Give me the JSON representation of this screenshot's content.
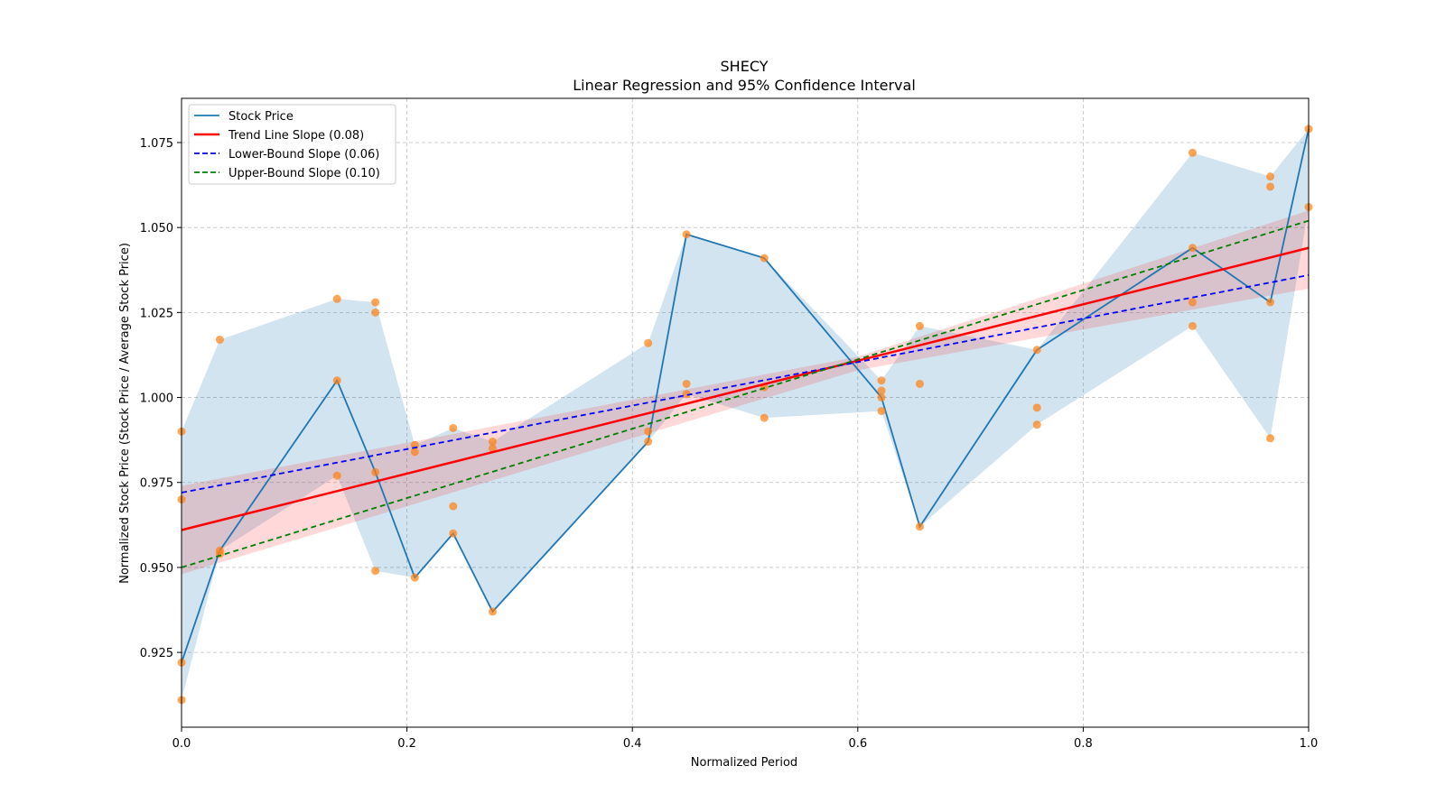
{
  "chart_data": {
    "type": "line",
    "title": "SHECY",
    "subtitle": "Linear Regression and 95% Confidence Interval",
    "xlabel": "Normalized Period",
    "ylabel": "Normalized Stock Price (Stock Price / Average Stock Price)",
    "xlim": [
      0.0,
      1.0
    ],
    "ylim": [
      0.903,
      1.088
    ],
    "x_ticks": [
      0.0,
      0.2,
      0.4,
      0.6,
      0.8,
      1.0
    ],
    "x_tick_labels": [
      "0.0",
      "0.2",
      "0.4",
      "0.6",
      "0.8",
      "1.0"
    ],
    "y_ticks": [
      0.925,
      0.95,
      0.975,
      1.0,
      1.025,
      1.05,
      1.075
    ],
    "y_tick_labels": [
      "0.925",
      "0.950",
      "0.975",
      "1.000",
      "1.025",
      "1.050",
      "1.075"
    ],
    "grid": true,
    "legend_position": "top-left",
    "legend": [
      {
        "label": "Stock Price",
        "color": "#1f77b4",
        "style": "solid"
      },
      {
        "label": "Trend Line Slope (0.08)",
        "color": "#ff0000",
        "style": "solid"
      },
      {
        "label": "Lower-Bound Slope (0.06)",
        "color": "#0000ff",
        "style": "dashed"
      },
      {
        "label": "Upper-Bound Slope (0.10)",
        "color": "#008000",
        "style": "dashed"
      }
    ],
    "stock_price": {
      "name": "Stock Price",
      "color": "#1f77b4",
      "x": [
        0.0,
        0.034,
        0.138,
        0.172,
        0.207,
        0.241,
        0.276,
        0.414,
        0.448,
        0.517,
        0.621,
        0.655,
        0.759,
        0.897,
        0.966,
        1.0
      ],
      "y": [
        0.922,
        0.955,
        1.005,
        0.978,
        0.947,
        0.96,
        0.937,
        0.987,
        1.048,
        1.041,
        1.0,
        0.962,
        1.014,
        1.044,
        1.028,
        1.079
      ]
    },
    "range_band": {
      "color": "#1f77b4",
      "x": [
        0.0,
        0.034,
        0.138,
        0.172,
        0.207,
        0.241,
        0.276,
        0.414,
        0.448,
        0.517,
        0.621,
        0.655,
        0.759,
        0.897,
        0.966,
        1.0
      ],
      "lower": [
        0.911,
        0.955,
        0.977,
        0.949,
        0.947,
        0.96,
        0.937,
        0.987,
        1.001,
        0.994,
        0.996,
        0.962,
        0.992,
        1.021,
        0.988,
        1.056
      ],
      "upper": [
        0.99,
        1.017,
        1.029,
        1.028,
        0.986,
        0.991,
        0.987,
        1.016,
        1.048,
        1.041,
        1.005,
        1.021,
        1.014,
        1.072,
        1.065,
        1.079
      ]
    },
    "scatter_points": {
      "color": "#ff7f0e",
      "x": [
        0.0,
        0.0,
        0.0,
        0.0,
        0.034,
        0.034,
        0.034,
        0.138,
        0.138,
        0.138,
        0.172,
        0.172,
        0.172,
        0.172,
        0.207,
        0.207,
        0.207,
        0.241,
        0.241,
        0.241,
        0.276,
        0.276,
        0.276,
        0.414,
        0.414,
        0.414,
        0.448,
        0.448,
        0.448,
        0.517,
        0.517,
        0.517,
        0.621,
        0.621,
        0.621,
        0.621,
        0.655,
        0.655,
        0.655,
        0.759,
        0.759,
        0.759,
        0.897,
        0.897,
        0.897,
        0.897,
        0.966,
        0.966,
        0.966,
        0.966,
        1.0,
        1.0
      ],
      "y": [
        0.99,
        0.97,
        0.922,
        0.911,
        1.017,
        0.955,
        0.954,
        1.029,
        1.005,
        0.977,
        1.028,
        1.025,
        0.978,
        0.949,
        0.986,
        0.984,
        0.947,
        0.991,
        0.968,
        0.96,
        0.987,
        0.985,
        0.937,
        1.016,
        0.99,
        0.987,
        1.048,
        1.004,
        1.001,
        1.041,
        1.003,
        0.994,
        1.005,
        1.002,
        1.0,
        0.996,
        1.021,
        1.004,
        0.962,
        1.014,
        0.997,
        0.992,
        1.072,
        1.044,
        1.028,
        1.021,
        1.065,
        1.062,
        1.028,
        0.988,
        1.079,
        1.056
      ]
    },
    "trend_line": {
      "name": "Trend Line Slope (0.08)",
      "color": "#ff0000",
      "x": [
        0.0,
        1.0
      ],
      "y": [
        0.961,
        1.044
      ]
    },
    "lower_bound_line": {
      "name": "Lower-Bound Slope (0.06)",
      "color": "#0000ff",
      "x": [
        0.0,
        1.0
      ],
      "y": [
        0.972,
        1.036
      ]
    },
    "upper_bound_line": {
      "name": "Upper-Bound Slope (0.10)",
      "color": "#008000",
      "x": [
        0.0,
        1.0
      ],
      "y": [
        0.95,
        1.052
      ]
    },
    "confidence_band": {
      "color": "#ff0000",
      "x": [
        0.0,
        0.6,
        1.0
      ],
      "lower": [
        0.948,
        1.008,
        1.032
      ],
      "upper": [
        0.974,
        1.012,
        1.055
      ]
    }
  }
}
